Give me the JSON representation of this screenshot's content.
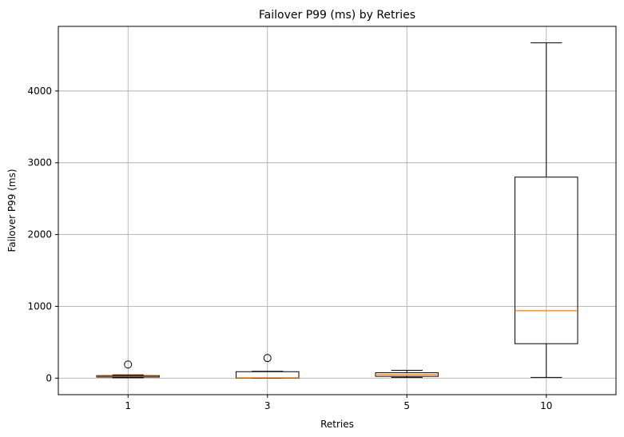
{
  "chart_data": {
    "type": "box",
    "title": "Failover P99 (ms) by Retries",
    "xlabel": "Retries",
    "ylabel": "Failover P99 (ms)",
    "categories": [
      "1",
      "3",
      "5",
      "10"
    ],
    "ylim": [
      -230,
      4900
    ],
    "yticks": [
      0,
      1000,
      2000,
      3000,
      4000
    ],
    "grid": true,
    "colors": {
      "box": "#000000",
      "median": "#ff7f0e",
      "grid": "#b0b0b0"
    },
    "boxes": [
      {
        "category": "1",
        "whislo": 5,
        "q1": 15,
        "med": 25,
        "q3": 35,
        "whishi": 45,
        "fliers": [
          190
        ]
      },
      {
        "category": "3",
        "whislo": 0,
        "q1": 0,
        "med": 5,
        "q3": 90,
        "whishi": 95,
        "fliers": [
          280
        ]
      },
      {
        "category": "5",
        "whislo": 10,
        "q1": 25,
        "med": 50,
        "q3": 75,
        "whishi": 110,
        "fliers": []
      },
      {
        "category": "10",
        "whislo": 10,
        "q1": 480,
        "med": 940,
        "q3": 2800,
        "whishi": 4670,
        "fliers": []
      }
    ]
  }
}
